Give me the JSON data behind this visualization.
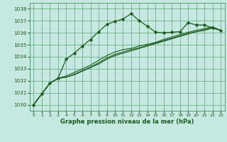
{
  "xlabel": "Graphe pression niveau de la mer (hPa)",
  "bg_color": "#c5e8e0",
  "grid_color": "#4a9060",
  "line_color": "#1a5c1a",
  "xlim": [
    -0.5,
    23.5
  ],
  "ylim": [
    1029.5,
    1038.5
  ],
  "yticks": [
    1030,
    1031,
    1032,
    1033,
    1034,
    1035,
    1036,
    1037,
    1038
  ],
  "xticks": [
    0,
    1,
    2,
    3,
    4,
    5,
    6,
    7,
    8,
    9,
    10,
    11,
    12,
    13,
    14,
    15,
    16,
    17,
    18,
    19,
    20,
    21,
    22,
    23
  ],
  "line1_x": [
    0,
    1,
    2,
    3,
    4,
    5,
    6,
    7,
    8,
    9,
    10,
    11,
    12,
    13,
    14,
    15,
    16,
    17,
    18,
    19,
    20,
    21,
    22,
    23
  ],
  "line1_y": [
    1030.0,
    1030.9,
    1031.8,
    1032.2,
    1033.8,
    1034.3,
    1034.9,
    1035.45,
    1036.1,
    1036.7,
    1036.95,
    1037.15,
    1037.6,
    1037.0,
    1036.55,
    1036.05,
    1036.0,
    1036.05,
    1036.1,
    1036.85,
    1036.65,
    1036.65,
    1036.4,
    1036.2
  ],
  "line2_x": [
    0,
    1,
    2,
    3,
    4,
    5,
    6,
    7,
    8,
    9,
    10,
    11,
    12,
    13,
    14,
    15,
    16,
    17,
    18,
    19,
    20,
    21,
    22,
    23
  ],
  "line2_y": [
    1030.0,
    1030.9,
    1031.8,
    1032.2,
    1032.3,
    1032.5,
    1032.8,
    1033.1,
    1033.4,
    1033.8,
    1034.1,
    1034.3,
    1034.5,
    1034.7,
    1034.9,
    1035.1,
    1035.3,
    1035.5,
    1035.7,
    1035.9,
    1036.1,
    1036.2,
    1036.4,
    1036.2
  ],
  "line3_x": [
    0,
    1,
    2,
    3,
    4,
    5,
    6,
    7,
    8,
    9,
    10,
    11,
    12,
    13,
    14,
    15,
    16,
    17,
    18,
    19,
    20,
    21,
    22,
    23
  ],
  "line3_y": [
    1030.0,
    1030.9,
    1031.8,
    1032.2,
    1032.3,
    1032.55,
    1032.85,
    1033.15,
    1033.5,
    1033.9,
    1034.2,
    1034.4,
    1034.6,
    1034.75,
    1034.95,
    1035.15,
    1035.35,
    1035.55,
    1035.75,
    1035.95,
    1036.1,
    1036.25,
    1036.45,
    1036.2
  ],
  "line4_x": [
    0,
    1,
    2,
    3,
    4,
    5,
    6,
    7,
    8,
    9,
    10,
    11,
    12,
    13,
    14,
    15,
    16,
    17,
    18,
    19,
    20,
    21,
    22,
    23
  ],
  "line4_y": [
    1030.0,
    1030.9,
    1031.8,
    1032.2,
    1032.4,
    1032.7,
    1033.0,
    1033.3,
    1033.7,
    1034.1,
    1034.4,
    1034.6,
    1034.7,
    1034.9,
    1035.05,
    1035.2,
    1035.45,
    1035.65,
    1035.85,
    1036.05,
    1036.2,
    1036.35,
    1036.5,
    1036.2
  ]
}
